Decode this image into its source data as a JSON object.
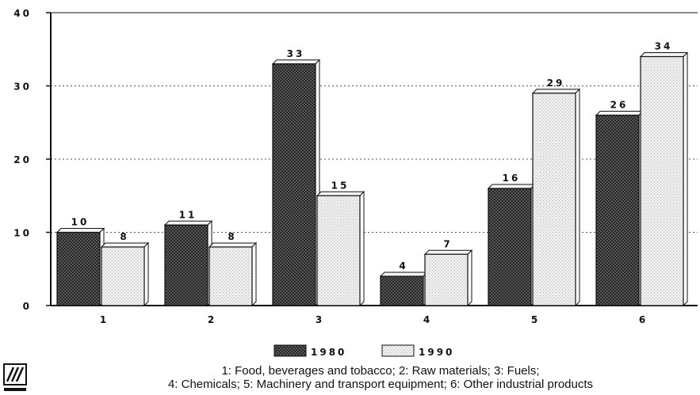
{
  "chart_data": {
    "type": "bar",
    "categories": [
      "1",
      "2",
      "3",
      "4",
      "5",
      "6"
    ],
    "series": [
      {
        "name": "1980",
        "values": [
          10,
          11,
          33,
          4,
          16,
          26
        ],
        "pattern": "dark-crosshatch"
      },
      {
        "name": "1990",
        "values": [
          8,
          8,
          15,
          7,
          29,
          34
        ],
        "pattern": "light-stipple"
      }
    ],
    "data_labels": {
      "1980": [
        "10",
        "11",
        "33",
        "4",
        "16",
        "26"
      ],
      "1990": [
        "8",
        "8",
        "15",
        "7",
        "29",
        "34"
      ]
    },
    "yticks": [
      "0",
      "10",
      "20",
      "30",
      "40"
    ],
    "ylim": [
      0,
      40
    ],
    "grid": "dotted horizontal",
    "legend_placement": "bottom-center",
    "title": "",
    "xlabel": "",
    "ylabel": ""
  },
  "footnote": {
    "line1": "1: Food, beverages and tobacco; 2: Raw materials; 3: Fuels;",
    "line2": "4: Chemicals; 5: Machinery and transport equipment; 6: Other industrial products"
  },
  "colors": {
    "series_1980_fill": "#5a5a5a",
    "series_1990_fill": "#e6e6e6",
    "gridline": "#555555",
    "axis": "#111111"
  }
}
